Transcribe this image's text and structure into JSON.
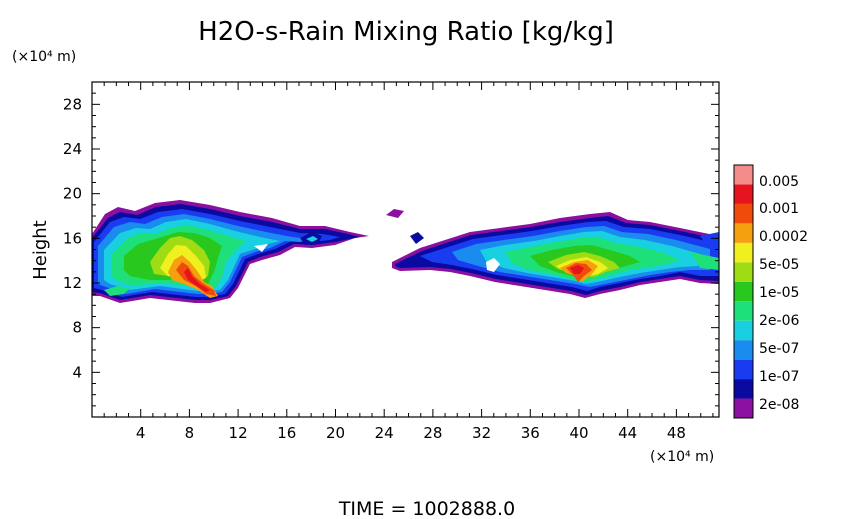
{
  "chart_data": {
    "type": "heatmap",
    "title": "H2O-s-Rain Mixing Ratio [kg/kg]",
    "ylabel": "Height",
    "y_unit": "(×10⁴ m)",
    "x_unit": "(×10⁴ m)",
    "footer": "TIME  =  1002888.0",
    "xlim": [
      0,
      51.5
    ],
    "ylim": [
      0,
      30
    ],
    "x_ticks": [
      "4",
      "8",
      "12",
      "16",
      "20",
      "24",
      "28",
      "32",
      "36",
      "40",
      "44",
      "48"
    ],
    "y_ticks": [
      "4",
      "8",
      "12",
      "16",
      "20",
      "24",
      "28"
    ],
    "colorbar": {
      "levels": [
        "2e-08",
        "1e-07",
        "5e-07",
        "2e-06",
        "1e-05",
        "5e-05",
        "0.0002",
        "0.001",
        "0.005"
      ],
      "colors": [
        "#8b0fa0",
        "#0a0aa0",
        "#1a3cf0",
        "#1a8cf0",
        "#19d0e0",
        "#1ee07a",
        "#28c81e",
        "#a0dc14",
        "#f0f01e",
        "#f5a00f",
        "#f04b0a",
        "#e6141e",
        "#f58c8c"
      ]
    },
    "regions": [
      {
        "name": "left-cloud",
        "x": [
          0,
          23
        ],
        "y": [
          10,
          19.5
        ],
        "core_x": 9,
        "core_y": 13,
        "peak": "0.001"
      },
      {
        "name": "right-cloud",
        "x": [
          23,
          51.5
        ],
        "y": [
          10.5,
          18
        ],
        "core_x": 39.5,
        "core_y": 13,
        "peak": "0.001"
      }
    ]
  }
}
